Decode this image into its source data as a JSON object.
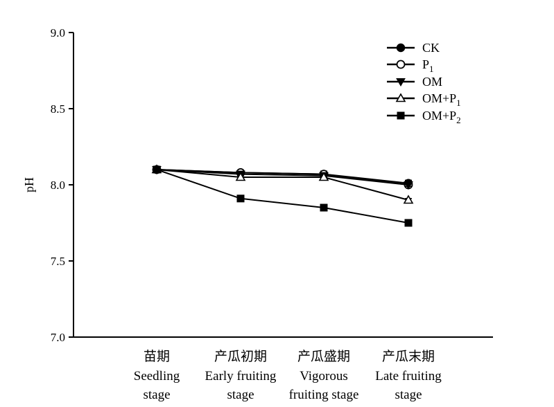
{
  "chart_data": {
    "type": "line",
    "ylabel": "pH",
    "ylim": [
      7.0,
      9.0
    ],
    "yticks": [
      "7.0",
      "7.5",
      "8.0",
      "8.5",
      "9.0"
    ],
    "categories": [
      {
        "zh": "苗期",
        "en1": "Seedling",
        "en2": "stage"
      },
      {
        "zh": "产瓜初期",
        "en1": "Early fruiting",
        "en2": "stage"
      },
      {
        "zh": "产瓜盛期",
        "en1": "Vigorous",
        "en2": "fruiting stage"
      },
      {
        "zh": "产瓜末期",
        "en1": "Late fruiting",
        "en2": "stage"
      }
    ],
    "series": [
      {
        "name": "CK",
        "sub": "",
        "marker": "circle-filled",
        "values": [
          8.1,
          8.08,
          8.07,
          8.01
        ],
        "errors": [
          0.01,
          0.01,
          0.02,
          0.02
        ]
      },
      {
        "name": "P",
        "sub": "1",
        "marker": "circle-open",
        "values": [
          8.1,
          8.08,
          8.07,
          8.0
        ],
        "errors": [
          0.01,
          0.01,
          0.01,
          0.01
        ]
      },
      {
        "name": "OM",
        "sub": "",
        "marker": "triangle-down-filled",
        "values": [
          8.1,
          8.07,
          8.06,
          8.0
        ],
        "errors": [
          0.01,
          0.01,
          0.01,
          0.01
        ]
      },
      {
        "name": "OM+P",
        "sub": "1",
        "marker": "triangle-up-open",
        "values": [
          8.1,
          8.05,
          8.05,
          7.9
        ],
        "errors": [
          0.01,
          0.01,
          0.01,
          0.01
        ]
      },
      {
        "name": "OM+P",
        "sub": "2",
        "marker": "square-filled",
        "values": [
          8.1,
          7.91,
          7.85,
          7.75
        ],
        "errors": [
          0.01,
          0.02,
          0.01,
          0.01
        ]
      }
    ],
    "grid": false,
    "legend_position": "top-right"
  }
}
